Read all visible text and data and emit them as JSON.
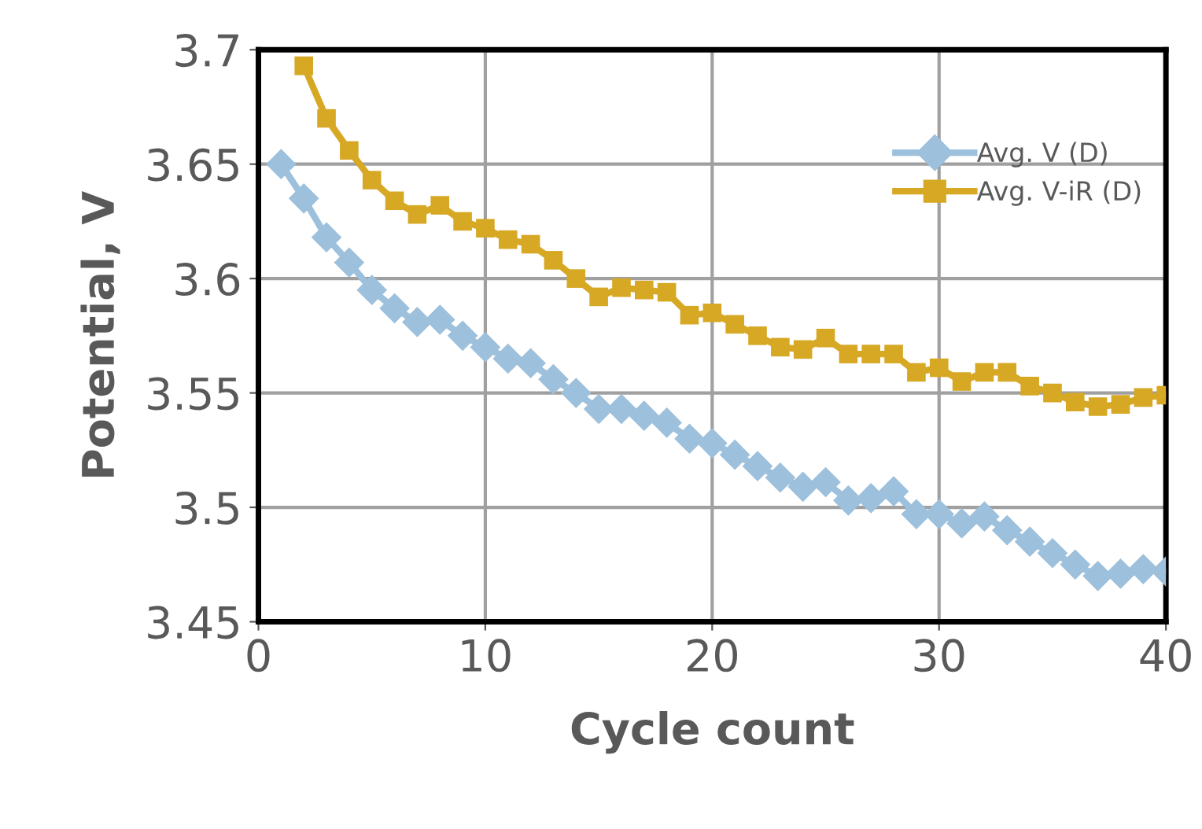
{
  "chart_data": {
    "type": "line",
    "xlabel": "Cycle count",
    "ylabel": "Potential, V",
    "xlim": [
      0,
      40
    ],
    "xticks": [
      0,
      10,
      20,
      30,
      40
    ],
    "ylim": [
      3.45,
      3.7
    ],
    "yticks": [
      3.45,
      3.5,
      3.55,
      3.6,
      3.65,
      3.7
    ],
    "grid": true,
    "legend": "top right",
    "series": [
      {
        "name": "Avg. V (D)",
        "color": "#9dc0dc",
        "marker": "diamond",
        "x": [
          1,
          2,
          3,
          4,
          5,
          6,
          7,
          8,
          9,
          10,
          11,
          12,
          13,
          14,
          15,
          16,
          17,
          18,
          19,
          20,
          21,
          22,
          23,
          24,
          25,
          26,
          27,
          28,
          29,
          30,
          31,
          32,
          33,
          34,
          35,
          36,
          37,
          38,
          39,
          40
        ],
        "values": [
          3.65,
          3.635,
          3.618,
          3.607,
          3.595,
          3.587,
          3.581,
          3.582,
          3.575,
          3.57,
          3.565,
          3.563,
          3.556,
          3.55,
          3.543,
          3.543,
          3.54,
          3.537,
          3.53,
          3.528,
          3.523,
          3.518,
          3.513,
          3.509,
          3.511,
          3.503,
          3.504,
          3.507,
          3.497,
          3.497,
          3.493,
          3.496,
          3.49,
          3.485,
          3.48,
          3.475,
          3.47,
          3.471,
          3.473,
          3.472
        ]
      },
      {
        "name": "Avg. V-iR (D)",
        "color": "#d6a824",
        "marker": "square",
        "x": [
          2,
          3,
          4,
          5,
          6,
          7,
          8,
          9,
          10,
          11,
          12,
          13,
          14,
          15,
          16,
          17,
          18,
          19,
          20,
          21,
          22,
          23,
          24,
          25,
          26,
          27,
          28,
          29,
          30,
          31,
          32,
          33,
          34,
          35,
          36,
          37,
          38,
          39,
          40
        ],
        "values": [
          3.693,
          3.67,
          3.656,
          3.643,
          3.634,
          3.628,
          3.632,
          3.625,
          3.622,
          3.617,
          3.615,
          3.608,
          3.6,
          3.592,
          3.596,
          3.595,
          3.594,
          3.584,
          3.585,
          3.58,
          3.575,
          3.57,
          3.569,
          3.574,
          3.567,
          3.567,
          3.567,
          3.559,
          3.561,
          3.555,
          3.559,
          3.559,
          3.553,
          3.55,
          3.546,
          3.544,
          3.545,
          3.548,
          3.549
        ]
      }
    ]
  }
}
